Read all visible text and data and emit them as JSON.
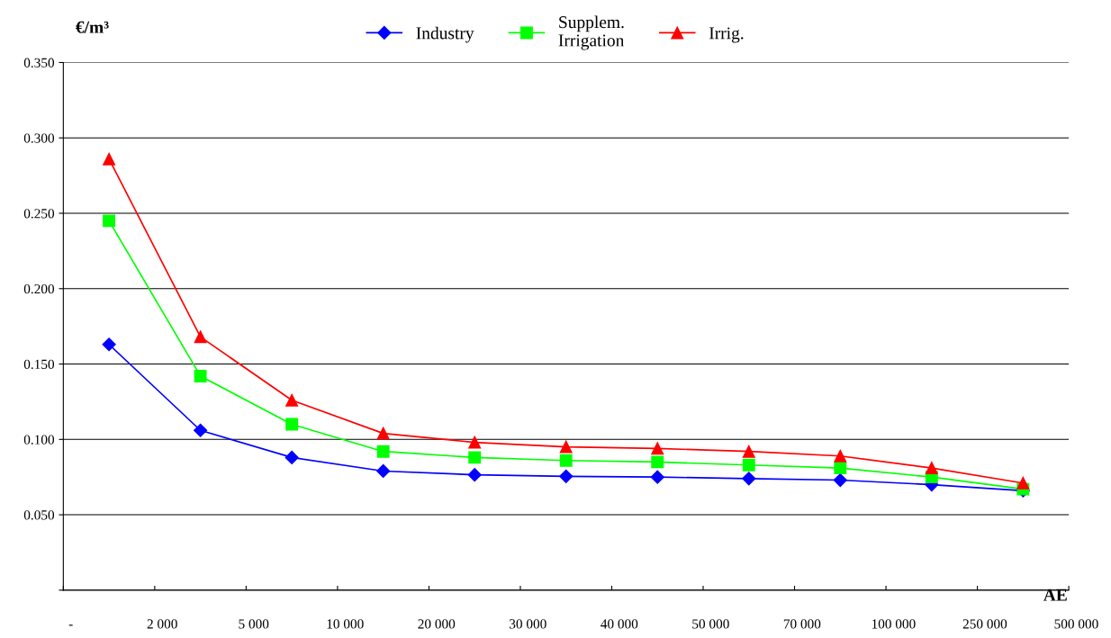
{
  "chart_data": {
    "type": "line",
    "ylabel": "€/m³",
    "xlabel": "AE",
    "categories": [
      null,
      null,
      null,
      null,
      null,
      null,
      null,
      null,
      null,
      null,
      null
    ],
    "annotations": [
      "-",
      "2 000",
      "5 000",
      "10 000",
      "20 000",
      "30 000",
      "40 000",
      "50 000",
      "70 000",
      "100 000",
      "250 000",
      "500 000"
    ],
    "ylim": [
      0,
      0.35
    ],
    "yticks": [
      {
        "value": 0,
        "label": null
      },
      {
        "value": 0.05,
        "label": "0.050"
      },
      {
        "value": 0.1,
        "label": "0.100"
      },
      {
        "value": 0.15,
        "label": "0.150"
      },
      {
        "value": 0.2,
        "label": "0.200"
      },
      {
        "value": 0.25,
        "label": "0.250"
      },
      {
        "value": 0.3,
        "label": "0.300"
      },
      {
        "value": 0.35,
        "label": "0.350"
      }
    ],
    "grid": "y",
    "legend": "top",
    "series": [
      {
        "name": "Industry",
        "color": "#0000ff",
        "marker": "diamond",
        "values": [
          0.163,
          0.106,
          0.088,
          0.079,
          0.0765,
          0.0755,
          0.075,
          0.074,
          0.073,
          0.07,
          0.066
        ]
      },
      {
        "name": "Supplem.\nIrrigation",
        "color": "#00ff00",
        "marker": "square",
        "values": [
          0.245,
          0.142,
          0.11,
          0.092,
          0.088,
          0.086,
          0.085,
          0.083,
          0.081,
          0.075,
          0.067
        ]
      },
      {
        "name": "Irrig.",
        "color": "#ff0000",
        "marker": "triangle",
        "values": [
          0.286,
          0.168,
          0.126,
          0.104,
          0.098,
          0.095,
          0.094,
          0.092,
          0.089,
          0.081,
          0.071
        ]
      }
    ]
  }
}
